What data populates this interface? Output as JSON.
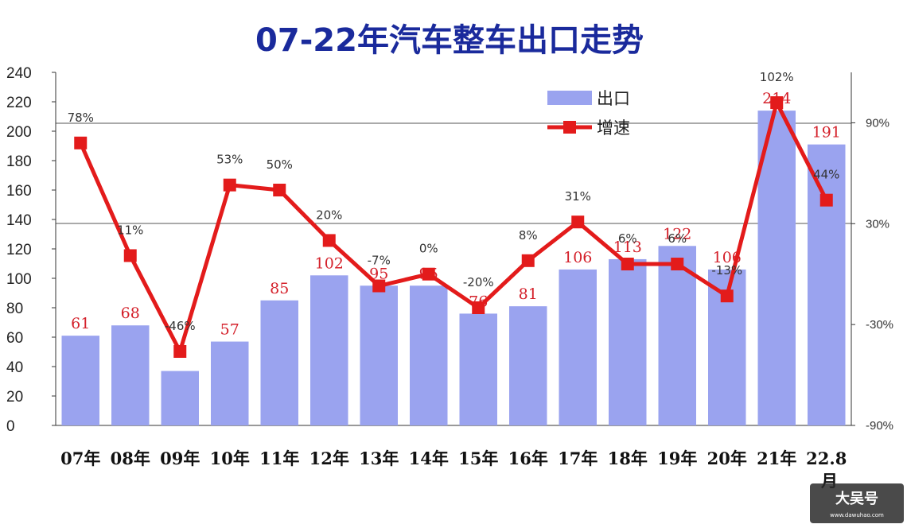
{
  "chart_data": {
    "type": "bar",
    "title": "07-22年汽车整车出口走势",
    "categories": [
      "07年",
      "08年",
      "09年",
      "10年",
      "11年",
      "12年",
      "13年",
      "14年",
      "15年",
      "16年",
      "17年",
      "18年",
      "19年",
      "20年",
      "21年",
      "22.8"
    ],
    "x_axis_suffix": "月",
    "ylim": [
      0,
      240
    ],
    "y_ticks": [
      "0",
      "20",
      "40",
      "60",
      "80",
      "100",
      "120",
      "140",
      "160",
      "180",
      "200",
      "220",
      "240"
    ],
    "y2lim": [
      -90,
      120
    ],
    "y2_ticks": [
      "-90%",
      "-30%",
      "30%",
      "90%"
    ],
    "series": [
      {
        "name": "出口",
        "kind": "bar",
        "values": [
          61,
          68,
          37,
          57,
          85,
          102,
          95,
          95,
          76,
          81,
          106,
          113,
          122,
          106,
          214,
          191
        ],
        "labels": [
          "61",
          "68",
          "",
          "57",
          "85",
          "102",
          "95",
          "95",
          "76",
          "81",
          "106",
          "113",
          "122",
          "106",
          "214",
          "191"
        ],
        "color": "#9aa3ef"
      },
      {
        "name": "增速",
        "kind": "line",
        "values": [
          78,
          11,
          -46,
          53,
          50,
          20,
          -7,
          0,
          -20,
          8,
          31,
          6,
          6,
          -13,
          102,
          44
        ],
        "labels": [
          "78%",
          "11%",
          "-46%",
          "53%",
          "50%",
          "20%",
          "-7%",
          "0%",
          "-20%",
          "8%",
          "31%",
          "6%",
          "6%",
          "-13%",
          "102%",
          "44%"
        ],
        "color": "#e31b1b"
      }
    ],
    "legend_position": "top-center",
    "grid": "horizontal"
  },
  "watermark": {
    "text": "大吴号",
    "sub": "www.dawuhao.com"
  }
}
